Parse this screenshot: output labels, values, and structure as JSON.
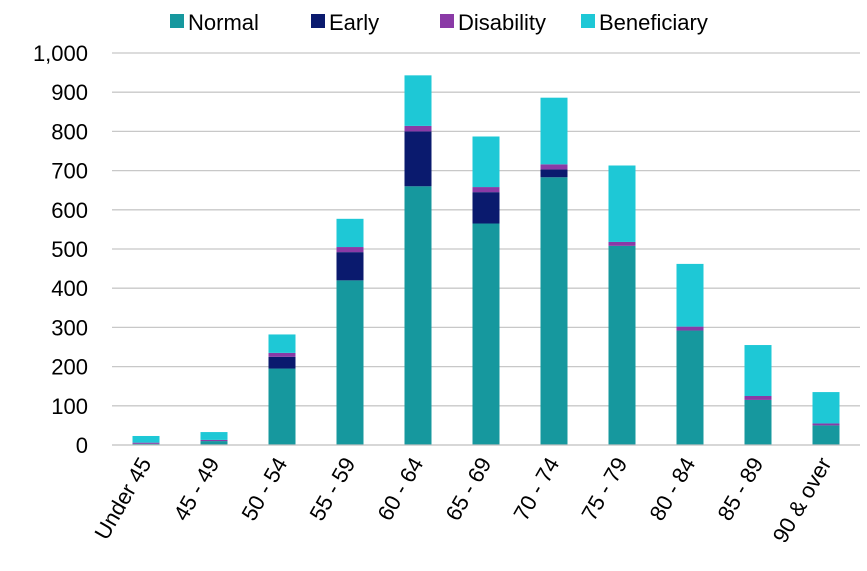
{
  "chart_data": {
    "type": "bar",
    "stacked": true,
    "categories": [
      "Under 45",
      "45 - 49",
      "50 - 54",
      "55 - 59",
      "60 - 64",
      "65 - 69",
      "70 - 74",
      "75 - 79",
      "80 - 84",
      "85 - 89",
      "90 & over"
    ],
    "series": [
      {
        "name": "Normal",
        "color": "#16989e",
        "values": [
          3,
          10,
          195,
          420,
          660,
          565,
          683,
          508,
          292,
          115,
          50
        ]
      },
      {
        "name": "Early",
        "color": "#0a1a6e",
        "values": [
          0,
          0,
          30,
          72,
          140,
          80,
          20,
          0,
          0,
          0,
          0
        ]
      },
      {
        "name": "Disability",
        "color": "#8a3aa6",
        "values": [
          3,
          3,
          10,
          13,
          14,
          13,
          13,
          10,
          10,
          10,
          5
        ]
      },
      {
        "name": "Beneficiary",
        "color": "#1ec8d6",
        "values": [
          17,
          20,
          47,
          72,
          129,
          129,
          170,
          195,
          160,
          130,
          80
        ]
      }
    ],
    "ylim": [
      0,
      1000
    ],
    "yticks": [
      0,
      100,
      200,
      300,
      400,
      500,
      600,
      700,
      800,
      900,
      1000
    ],
    "ytick_labels": [
      "0",
      "100",
      "200",
      "300",
      "400",
      "500",
      "600",
      "700",
      "800",
      "900",
      "1,000"
    ],
    "grid": true,
    "legend_position": "top"
  }
}
